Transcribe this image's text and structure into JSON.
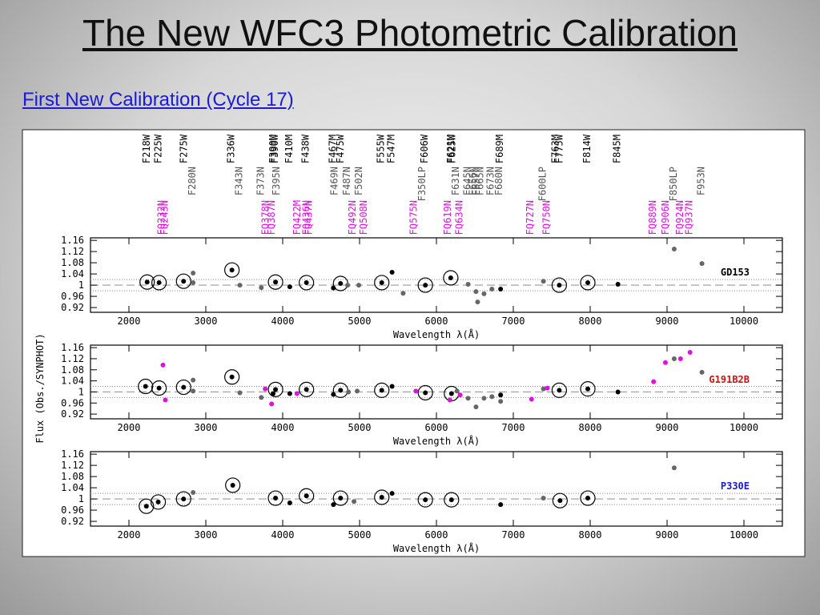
{
  "header": {
    "title": "The New WFC3 Photometric Calibration",
    "subtitle": "First New Calibration (Cycle 17)"
  },
  "figure": {
    "y_label": "Flux (Obs./SYNPHOT)",
    "ref_line": 1,
    "ref_band": [
      0.98,
      1.02
    ],
    "filters": [
      {
        "color": "#000000",
        "names": [
          "F218W",
          "F225W",
          "F275W",
          "F336W",
          "F390M",
          "F390W",
          "F410M",
          "F438W",
          "F467M",
          "F475W",
          "F555W",
          "F547M",
          "F606W",
          "F621M",
          "F625W",
          "F689M",
          "F763M",
          "F775W",
          "F814W",
          "F845M"
        ],
        "x": [
          2237,
          2392,
          2722,
          3340,
          3887,
          3907,
          4093,
          4309,
          4660,
          4763,
          5289,
          5423,
          5856,
          6196,
          6216,
          6835,
          7557,
          7608,
          7969,
          8361
        ]
      },
      {
        "color": "#555555",
        "names": [
          "F280N",
          "F343N",
          "F373N",
          "F395N",
          "F469N",
          "F487N",
          "F502N",
          "F350LP",
          "F631N",
          "F645N",
          "F656N",
          "F657N",
          "F665N",
          "F673N",
          "F680N",
          "F600LP",
          "F850LP",
          "F953N"
        ],
        "x": [
          2835,
          3443,
          3722,
          3928,
          4680,
          4845,
          5000,
          5825,
          6258,
          6412,
          6485,
          6526,
          6577,
          6711,
          6825,
          7392,
          9093,
          9454
        ]
      },
      {
        "color": "#e010e0",
        "names": [
          "FQ232N",
          "FQ243N",
          "FQ378N",
          "FQ387N",
          "FQ422M",
          "FQ436N",
          "FQ437N",
          "FQ492N",
          "FQ508N",
          "FQ575N",
          "FQ619N",
          "FQ634N",
          "FQ727N",
          "FQ750N",
          "FQ889N",
          "FQ906N",
          "FQ924N",
          "FQ937N"
        ],
        "x": [
          2433,
          2474,
          3784,
          3866,
          4196,
          4320,
          4351,
          4918,
          5062,
          5711,
          6155,
          6309,
          7227,
          7443,
          8825,
          8990,
          9175,
          9299
        ]
      }
    ]
  },
  "chart_data": [
    {
      "type": "scatter",
      "label": "GD153",
      "label_color": "#000000",
      "x_label": "Wavelength λ(Å)",
      "xlim": [
        1500,
        10500
      ],
      "xticks": [
        2000,
        3000,
        4000,
        5000,
        6000,
        7000,
        8000,
        9000,
        10000
      ],
      "ylim": [
        0.903,
        1.169
      ],
      "yticks": [
        0.92,
        0.96,
        1,
        1.04,
        1.08,
        1.12,
        1.16
      ],
      "series": [
        {
          "color": "#000000",
          "x": [
            2237,
            2392,
            2711,
            3340,
            3907,
            4093,
            4309,
            4660,
            4753,
            5289,
            5423,
            5856,
            6186,
            6835,
            7598,
            7969,
            8361
          ],
          "values": [
            1.011,
            1.009,
            1.014,
            1.054,
            1.011,
            0.994,
            1.009,
            0.99,
            1.006,
            1.009,
            1.046,
            1.0,
            1.026,
            0.986,
            1.0,
            1.009,
            1.003
          ],
          "circled": [
            true,
            true,
            true,
            true,
            true,
            false,
            true,
            false,
            true,
            true,
            false,
            true,
            true,
            false,
            true,
            true,
            false
          ]
        },
        {
          "color": "#666666",
          "x": [
            2835,
            2835,
            3443,
            3722,
            4845,
            4990,
            5567,
            6412,
            6515,
            6536,
            6619,
            6722,
            7392,
            9093,
            9454
          ],
          "values": [
            1.043,
            1.009,
            1.0,
            0.991,
            1.0,
            1.0,
            0.971,
            1.003,
            0.977,
            0.94,
            0.969,
            0.986,
            1.014,
            1.129,
            1.077
          ],
          "circled": [
            false,
            false,
            false,
            false,
            false,
            false,
            false,
            false,
            false,
            false,
            false,
            false,
            false,
            false,
            false
          ]
        }
      ]
    },
    {
      "type": "scatter",
      "label": "G191B2B",
      "label_color": "#d01010",
      "x_label": "Wavelength λ(Å)",
      "xlim": [
        1500,
        10500
      ],
      "xticks": [
        2000,
        3000,
        4000,
        5000,
        6000,
        7000,
        8000,
        9000,
        10000
      ],
      "ylim": [
        0.903,
        1.169
      ],
      "yticks": [
        0.92,
        0.96,
        1,
        1.04,
        1.08,
        1.12,
        1.16
      ],
      "series": [
        {
          "color": "#000000",
          "x": [
            2216,
            2392,
            2711,
            3340,
            3907,
            3876,
            4093,
            4309,
            4660,
            4753,
            5289,
            5423,
            5856,
            6196,
            6835,
            7598,
            7969,
            8361
          ],
          "values": [
            1.02,
            1.014,
            1.017,
            1.054,
            1.009,
            0.994,
            0.994,
            1.009,
            0.991,
            1.006,
            1.006,
            1.02,
            0.997,
            0.994,
            0.989,
            1.006,
            1.011,
            1.0
          ],
          "circled": [
            true,
            true,
            true,
            true,
            true,
            false,
            false,
            true,
            false,
            true,
            true,
            false,
            true,
            true,
            false,
            true,
            true,
            false
          ]
        },
        {
          "color": "#666666",
          "x": [
            2835,
            2835,
            3443,
            3722,
            4856,
            4969,
            6268,
            6412,
            6515,
            6619,
            6722,
            6835,
            7392,
            9093,
            9454
          ],
          "values": [
            1.043,
            1.003,
            0.997,
            0.98,
            1.0,
            1.003,
            1.003,
            0.977,
            0.946,
            0.977,
            0.983,
            0.966,
            1.011,
            1.12,
            1.071
          ],
          "circled": [
            false,
            false,
            false,
            false,
            false,
            false,
            false,
            false,
            false,
            false,
            false,
            false,
            false,
            false,
            false
          ]
        },
        {
          "color": "#e010e0",
          "x": [
            2443,
            2474,
            3773,
            3856,
            4186,
            5732,
            6175,
            6309,
            7237,
            7443,
            8825,
            8979,
            9175,
            9299
          ],
          "values": [
            1.097,
            0.971,
            1.011,
            0.957,
            0.994,
            1.003,
            0.971,
            0.989,
            0.974,
            1.014,
            1.037,
            1.106,
            1.12,
            1.143
          ],
          "circled": [
            false,
            false,
            false,
            false,
            false,
            false,
            false,
            false,
            false,
            false,
            false,
            false,
            false,
            false
          ]
        }
      ]
    },
    {
      "type": "scatter",
      "label": "P330E",
      "label_color": "#1a1ad0",
      "x_label": "Wavelength λ(Å)",
      "xlim": [
        1500,
        10500
      ],
      "xticks": [
        2000,
        3000,
        4000,
        5000,
        6000,
        7000,
        8000,
        9000,
        10000
      ],
      "ylim": [
        0.903,
        1.169
      ],
      "yticks": [
        0.92,
        0.96,
        1,
        1.04,
        1.08,
        1.12,
        1.16
      ],
      "series": [
        {
          "color": "#000000",
          "x": [
            2227,
            2381,
            2711,
            3351,
            3907,
            4093,
            4309,
            4660,
            4753,
            5289,
            5423,
            5856,
            6196,
            6835,
            7608,
            7969
          ],
          "values": [
            0.974,
            0.989,
            1.0,
            1.049,
            1.003,
            0.986,
            1.011,
            0.98,
            1.003,
            1.006,
            1.02,
            0.997,
            0.997,
            0.98,
            0.994,
            1.003
          ],
          "circled": [
            true,
            true,
            true,
            true,
            true,
            false,
            true,
            false,
            true,
            true,
            false,
            true,
            true,
            false,
            true,
            true
          ]
        },
        {
          "color": "#666666",
          "x": [
            2835,
            4928,
            7392,
            9093
          ],
          "values": [
            1.023,
            0.991,
            1.003,
            1.111
          ],
          "circled": [
            false,
            false,
            false,
            false
          ]
        }
      ]
    }
  ]
}
